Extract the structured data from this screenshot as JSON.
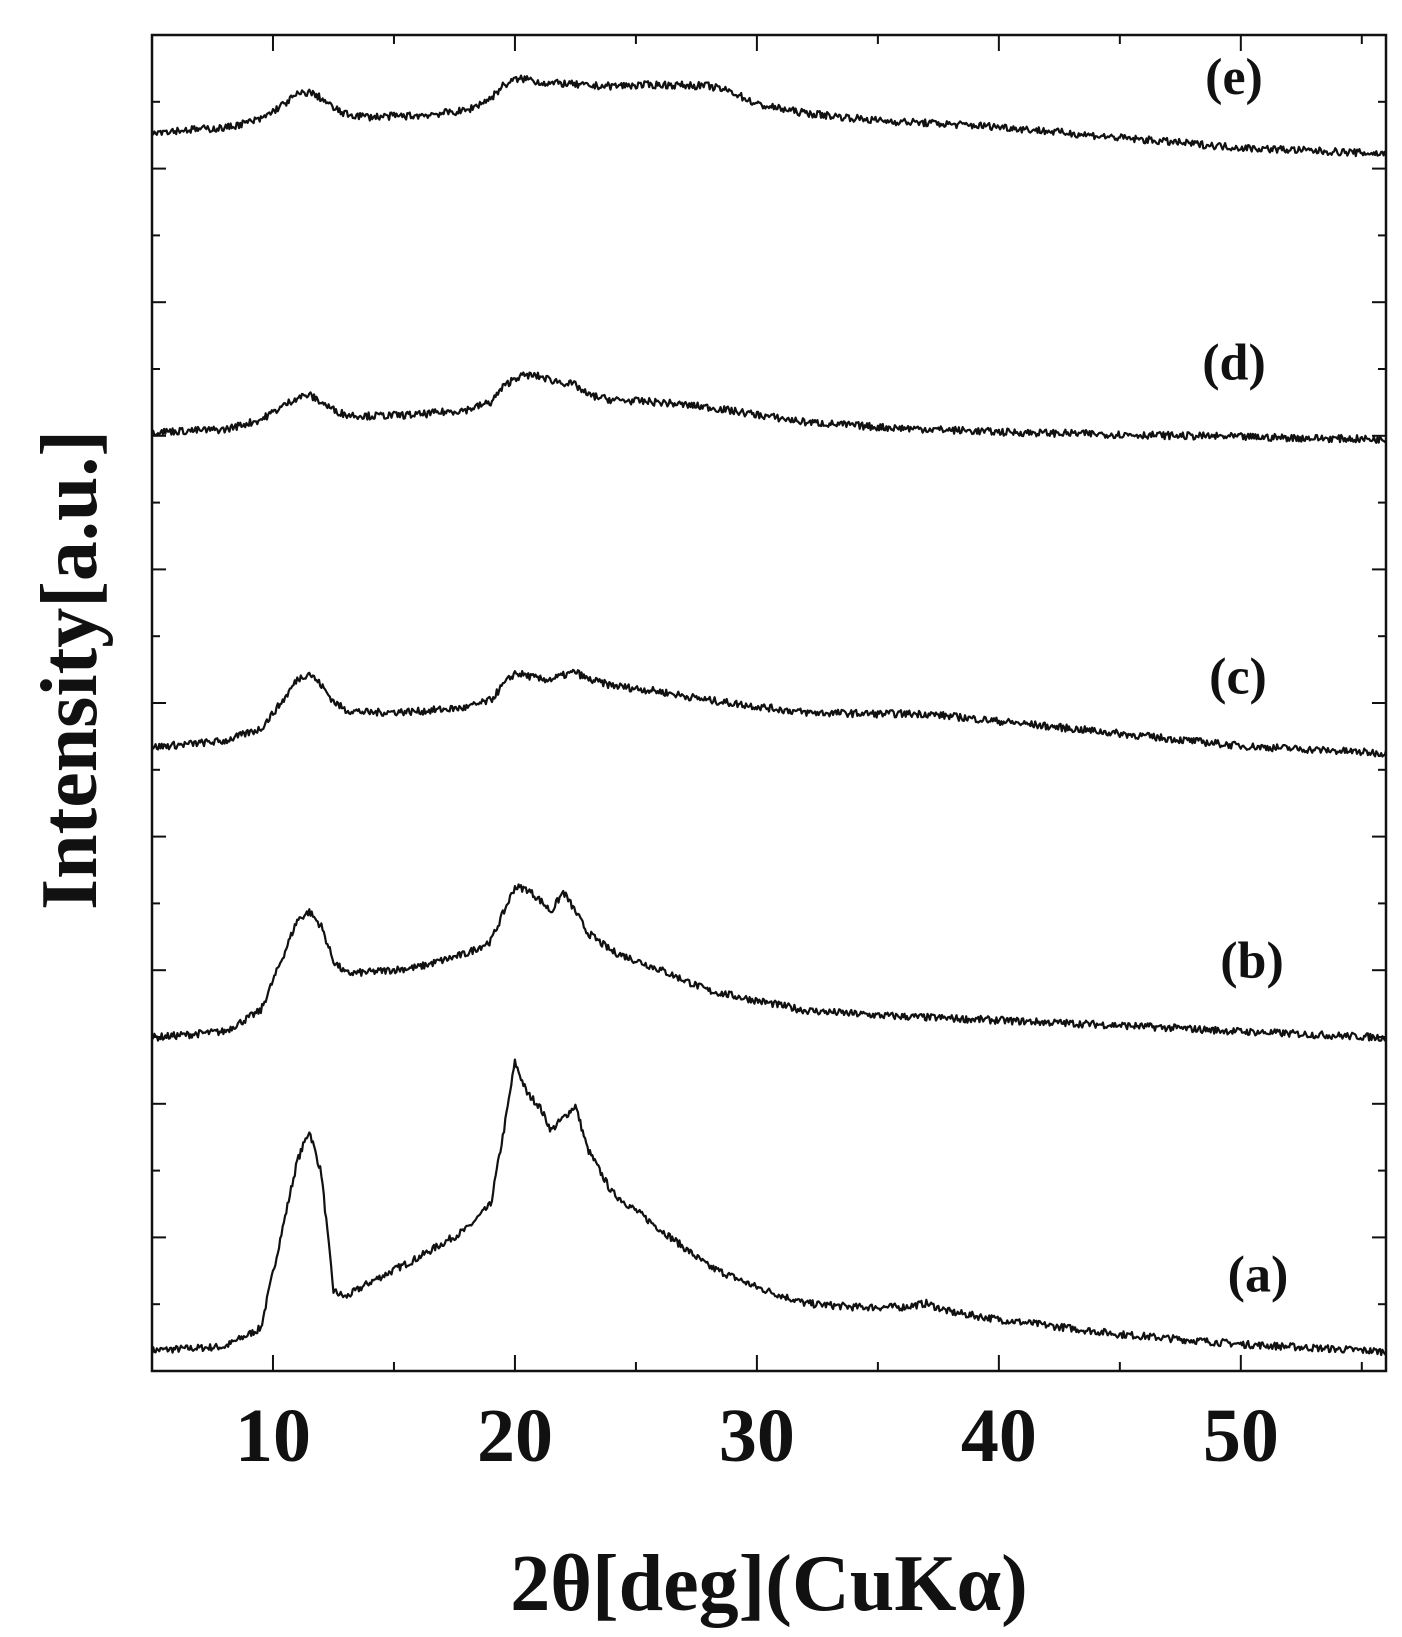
{
  "chart_data": {
    "type": "line",
    "title": "",
    "xlabel": "2θ[deg](CuKα)",
    "ylabel": "Intensity[a.u.]",
    "xlim": [
      5,
      56
    ],
    "ylim": [
      0,
      10
    ],
    "x_ticks": [
      10,
      20,
      30,
      40,
      50
    ],
    "x_minor_ticks": [
      15,
      25,
      35,
      45,
      55
    ],
    "y_ticks_count": 20,
    "grid": false,
    "legend": "none",
    "series": [
      {
        "name": "(a)",
        "x": [
          5,
          8,
          9.5,
          10.5,
          11,
          11.5,
          12,
          12.5,
          13,
          14,
          16,
          18,
          19,
          19.5,
          20,
          20.5,
          21,
          21.5,
          22,
          22.5,
          23,
          24,
          26,
          28,
          30,
          32,
          34,
          36,
          37,
          38,
          40,
          45,
          50,
          56
        ],
        "y": [
          0.07,
          0.1,
          0.25,
          1.15,
          1.6,
          1.85,
          1.5,
          0.55,
          0.5,
          0.62,
          0.82,
          1.05,
          1.25,
          1.8,
          2.4,
          2.15,
          2.05,
          1.85,
          1.95,
          2.05,
          1.7,
          1.35,
          1.05,
          0.75,
          0.58,
          0.45,
          0.42,
          0.42,
          0.45,
          0.38,
          0.32,
          0.2,
          0.12,
          0.06
        ]
      },
      {
        "name": "(b)",
        "x": [
          5,
          8,
          9.5,
          10.5,
          11,
          11.5,
          12,
          12.5,
          13,
          14,
          16,
          18,
          19,
          19.5,
          20,
          20.5,
          21,
          21.5,
          22,
          22.5,
          23,
          24,
          26,
          28,
          30,
          32,
          35,
          40,
          45,
          50,
          56
        ],
        "y": [
          2.6,
          2.65,
          2.82,
          3.3,
          3.55,
          3.62,
          3.5,
          3.22,
          3.12,
          3.13,
          3.17,
          3.28,
          3.38,
          3.6,
          3.82,
          3.8,
          3.72,
          3.62,
          3.78,
          3.62,
          3.45,
          3.3,
          3.15,
          2.98,
          2.9,
          2.82,
          2.78,
          2.74,
          2.7,
          2.65,
          2.6
        ]
      },
      {
        "name": "(c)",
        "x": [
          5,
          8,
          9.5,
          10.5,
          11,
          11.5,
          12,
          12.5,
          13,
          14,
          16,
          18,
          19,
          19.5,
          20,
          20.5,
          21,
          21.5,
          22,
          22.5,
          23,
          24,
          26,
          28,
          30,
          32,
          35,
          37,
          40,
          45,
          50,
          56
        ],
        "y": [
          4.95,
          5.0,
          5.1,
          5.35,
          5.5,
          5.55,
          5.45,
          5.32,
          5.25,
          5.23,
          5.24,
          5.27,
          5.33,
          5.45,
          5.55,
          5.53,
          5.5,
          5.5,
          5.53,
          5.56,
          5.5,
          5.45,
          5.4,
          5.33,
          5.28,
          5.23,
          5.22,
          5.22,
          5.16,
          5.06,
          4.96,
          4.9
        ]
      },
      {
        "name": "(d)",
        "x": [
          5,
          8,
          9.5,
          10.5,
          11,
          11.5,
          12,
          12.5,
          13,
          14,
          16,
          18,
          19,
          19.5,
          20,
          20.5,
          21,
          21.5,
          22,
          22.5,
          23,
          24,
          26,
          28,
          30,
          32,
          35,
          40,
          45,
          50,
          56
        ],
        "y": [
          7.5,
          7.52,
          7.6,
          7.72,
          7.78,
          7.8,
          7.74,
          7.68,
          7.64,
          7.63,
          7.64,
          7.68,
          7.74,
          7.86,
          7.94,
          7.96,
          7.95,
          7.92,
          7.9,
          7.88,
          7.8,
          7.76,
          7.74,
          7.7,
          7.64,
          7.58,
          7.54,
          7.5,
          7.48,
          7.46,
          7.44
        ]
      },
      {
        "name": "(e)",
        "x": [
          5,
          8,
          9.5,
          10.5,
          11,
          11.5,
          12,
          12.5,
          13,
          14,
          16,
          18,
          19,
          19.5,
          20,
          20.5,
          21,
          21.5,
          22,
          22.5,
          23,
          24,
          26,
          28,
          29,
          30,
          32,
          35,
          40,
          45,
          50,
          56
        ],
        "y": [
          9.93,
          9.96,
          10.03,
          10.16,
          10.23,
          10.25,
          10.2,
          10.12,
          10.07,
          10.05,
          10.06,
          10.1,
          10.2,
          10.3,
          10.35,
          10.36,
          10.33,
          10.32,
          10.32,
          10.31,
          10.3,
          10.3,
          10.31,
          10.3,
          10.25,
          10.15,
          10.08,
          10.02,
          9.97,
          9.88,
          9.8,
          9.75
        ]
      }
    ]
  }
}
